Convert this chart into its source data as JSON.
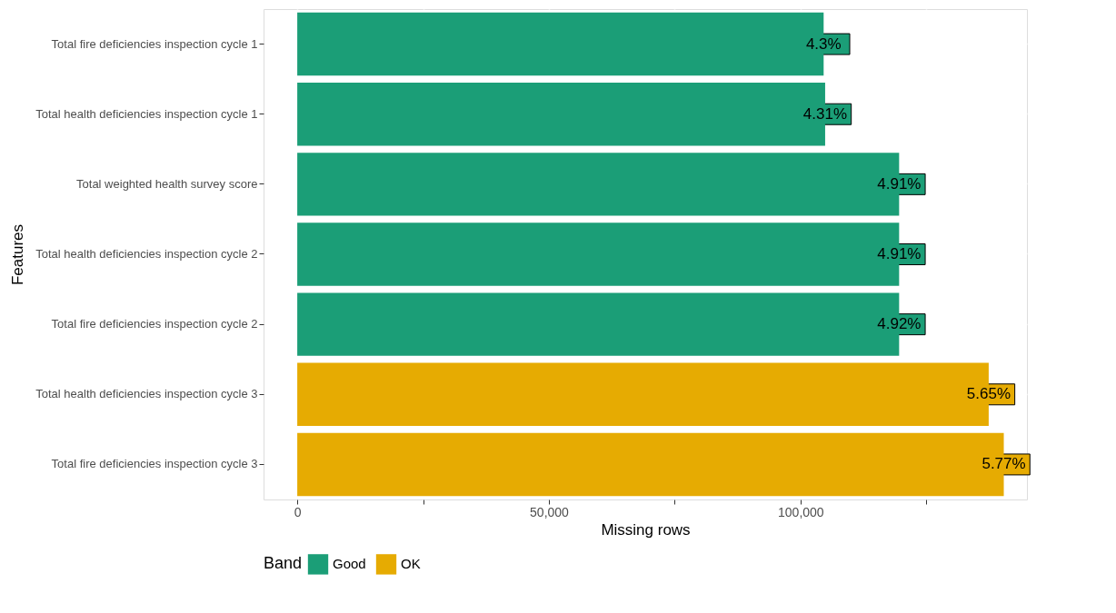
{
  "chart_data": {
    "type": "bar",
    "orientation": "horizontal",
    "xlabel": "Missing rows",
    "ylabel": "Features",
    "legend_title": "Band",
    "legend": "bottom",
    "grid": true,
    "categories": [
      "Total fire deficiencies inspection cycle 1",
      "Total health deficiencies inspection cycle 1",
      "Total weighted health survey score",
      "Total health deficiencies inspection cycle 2",
      "Total fire deficiencies inspection cycle 2",
      "Total health deficiencies inspection cycle 3",
      "Total fire deficiencies inspection cycle 3"
    ],
    "series": [
      {
        "name": "Good",
        "color": "#1b9e77",
        "values": [
          104600,
          104900,
          119600,
          119600,
          119600,
          null,
          null
        ]
      },
      {
        "name": "OK",
        "color": "#e6ab02",
        "values": [
          null,
          null,
          null,
          null,
          null,
          137400,
          140400
        ]
      }
    ],
    "annotations": [
      {
        "text": "4.3%",
        "x": 104600,
        "y": "Total fire deficiencies inspection cycle 1"
      },
      {
        "text": "4.31%",
        "x": 104900,
        "y": "Total health deficiencies inspection cycle 1"
      },
      {
        "text": "4.91%",
        "x": 119600,
        "y": "Total weighted health survey score"
      },
      {
        "text": "4.91%",
        "x": 119600,
        "y": "Total health deficiencies inspection cycle 2"
      },
      {
        "text": "4.92%",
        "x": 119600,
        "y": "Total fire deficiencies inspection cycle 2"
      },
      {
        "text": "5.65%",
        "x": 137400,
        "y": "Total health deficiencies inspection cycle 3"
      },
      {
        "text": "5.77%",
        "x": 140400,
        "y": "Total fire deficiencies inspection cycle 3"
      }
    ],
    "xlim": [
      -6700,
      145000
    ],
    "xticks": [
      {
        "value": 0,
        "label": "0"
      },
      {
        "value": 25000,
        "label": null
      },
      {
        "value": 50000,
        "label": "50,000"
      },
      {
        "value": 75000,
        "label": null
      },
      {
        "value": 100000,
        "label": "100,000"
      },
      {
        "value": 125000,
        "label": null
      }
    ]
  }
}
